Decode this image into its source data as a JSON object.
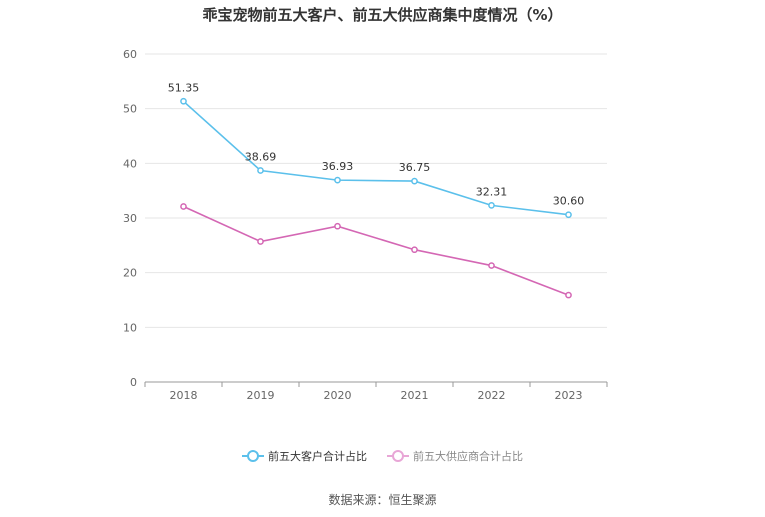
{
  "chart_data": {
    "type": "line",
    "title": "乖宝宠物前五大客户、前五大供应商集中度情况（%）",
    "categories": [
      "2018",
      "2019",
      "2020",
      "2021",
      "2022",
      "2023"
    ],
    "series": [
      {
        "name": "前五大客户合计占比",
        "color": "#5bc0eb",
        "values": [
          51.35,
          38.69,
          36.93,
          36.75,
          32.31,
          30.6
        ],
        "labels": [
          "51.35",
          "38.69",
          "36.93",
          "36.75",
          "32.31",
          "30.60"
        ],
        "show_labels": true
      },
      {
        "name": "前五大供应商合计占比",
        "color": "#d467b4",
        "values": [
          32.1,
          25.7,
          28.5,
          24.2,
          21.3,
          15.9
        ],
        "show_labels": false
      }
    ],
    "ylim": [
      0,
      60
    ],
    "yticks": [
      "0",
      "10",
      "20",
      "30",
      "40",
      "50",
      "60"
    ],
    "grid": true,
    "legend": "bottom-center",
    "source": "数据来源：恒生聚源"
  }
}
